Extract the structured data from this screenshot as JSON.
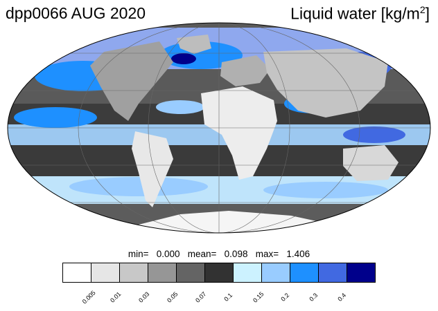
{
  "header": {
    "left_title": "dpp0066 AUG 2020",
    "right_title": "Liquid water  [kg/m",
    "right_title_sup": "2",
    "right_title_end": "]"
  },
  "stats": {
    "text": "min=   0.000   mean=   0.098   max=   1.406"
  },
  "colorbar": {
    "colors": [
      "#ffffff",
      "#e6e6e6",
      "#c8c8c8",
      "#969696",
      "#646464",
      "#323232",
      "#ccf2ff",
      "#99ccff",
      "#1e90ff",
      "#4169e1",
      "#00008b"
    ],
    "tick_labels": [
      "0.005",
      "0.01",
      "0.03",
      "0.05",
      "0.07",
      "0.1",
      "0.15",
      "0.2",
      "0.3",
      "0.4"
    ]
  }
}
